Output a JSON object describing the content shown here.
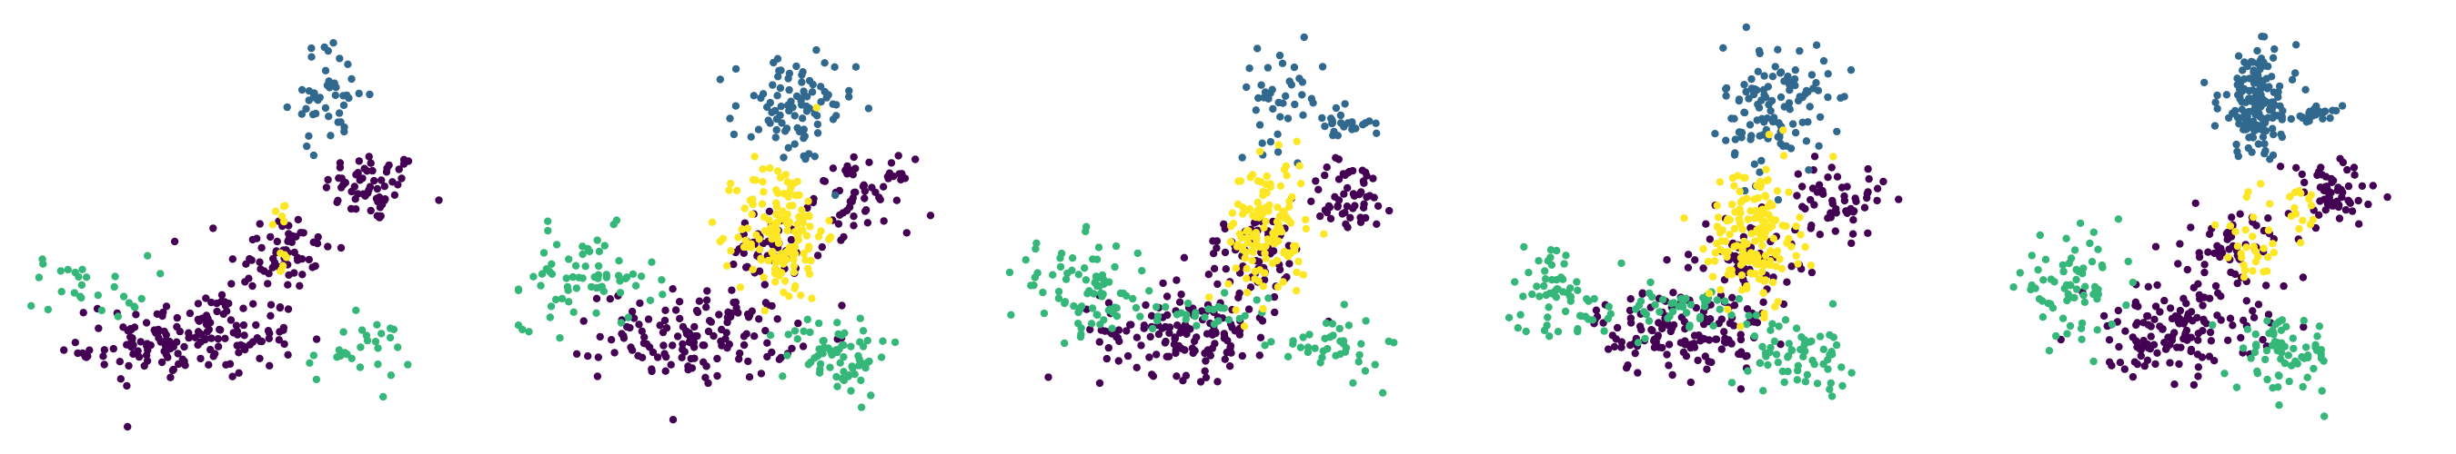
{
  "figure": {
    "description_hidden": ""
  },
  "chart_data": [
    {
      "type": "scatter",
      "title": "",
      "grid": false,
      "axes_visible": false,
      "xlim": [
        0,
        10
      ],
      "ylim": [
        0,
        10
      ],
      "colors": {
        "purple": "#440154",
        "blue": "#31688e",
        "green": "#35b779",
        "yellow": "#fde725"
      },
      "series": [
        {
          "color": "purple",
          "clusters": [
            {
              "cx": 7.9,
              "cy": 6.0,
              "sx": 0.55,
              "sy": 0.45,
              "n": 60
            },
            {
              "cx": 5.8,
              "cy": 4.4,
              "sx": 0.6,
              "sy": 0.5,
              "n": 60
            },
            {
              "cx": 4.0,
              "cy": 2.3,
              "sx": 1.1,
              "sy": 0.55,
              "n": 140
            },
            {
              "cx": 2.6,
              "cy": 1.9,
              "sx": 0.7,
              "sy": 0.45,
              "n": 30
            }
          ]
        },
        {
          "color": "blue",
          "clusters": [
            {
              "cx": 6.9,
              "cy": 8.3,
              "sx": 0.45,
              "sy": 0.65,
              "n": 45
            }
          ]
        },
        {
          "color": "green",
          "clusters": [
            {
              "cx": 1.4,
              "cy": 3.5,
              "sx": 0.7,
              "sy": 0.4,
              "n": 28
            },
            {
              "cx": 7.6,
              "cy": 1.9,
              "sx": 0.6,
              "sy": 0.4,
              "n": 28
            }
          ]
        },
        {
          "color": "yellow",
          "clusters": [
            {
              "cx": 5.8,
              "cy": 4.6,
              "sx": 0.15,
              "sy": 0.7,
              "n": 12
            }
          ]
        }
      ]
    },
    {
      "type": "scatter",
      "title": "",
      "grid": false,
      "axes_visible": false,
      "xlim": [
        0,
        10
      ],
      "ylim": [
        0,
        10
      ],
      "colors": {
        "purple": "#440154",
        "blue": "#31688e",
        "green": "#35b779",
        "yellow": "#fde725"
      },
      "series": [
        {
          "color": "purple",
          "clusters": [
            {
              "cx": 7.9,
              "cy": 5.8,
              "sx": 0.55,
              "sy": 0.45,
              "n": 60
            },
            {
              "cx": 5.8,
              "cy": 4.4,
              "sx": 0.6,
              "sy": 0.5,
              "n": 50
            },
            {
              "cx": 4.1,
              "cy": 2.3,
              "sx": 1.1,
              "sy": 0.55,
              "n": 140
            }
          ]
        },
        {
          "color": "blue",
          "clusters": [
            {
              "cx": 6.3,
              "cy": 7.9,
              "sx": 0.7,
              "sy": 0.7,
              "n": 90
            }
          ]
        },
        {
          "color": "green",
          "clusters": [
            {
              "cx": 1.5,
              "cy": 3.7,
              "sx": 0.8,
              "sy": 0.6,
              "n": 70
            },
            {
              "cx": 7.3,
              "cy": 1.8,
              "sx": 0.6,
              "sy": 0.5,
              "n": 70
            }
          ]
        },
        {
          "color": "yellow",
          "clusters": [
            {
              "cx": 6.0,
              "cy": 4.9,
              "sx": 0.5,
              "sy": 0.9,
              "n": 150
            }
          ]
        }
      ]
    },
    {
      "type": "scatter",
      "title": "",
      "grid": false,
      "axes_visible": false,
      "xlim": [
        0,
        10
      ],
      "ylim": [
        0,
        10
      ],
      "colors": {
        "purple": "#440154",
        "blue": "#31688e",
        "green": "#35b779",
        "yellow": "#fde725"
      },
      "series": [
        {
          "color": "purple",
          "clusters": [
            {
              "cx": 7.8,
              "cy": 5.8,
              "sx": 0.55,
              "sy": 0.45,
              "n": 55
            },
            {
              "cx": 5.6,
              "cy": 4.3,
              "sx": 0.6,
              "sy": 0.5,
              "n": 60
            },
            {
              "cx": 4.1,
              "cy": 2.4,
              "sx": 1.0,
              "sy": 0.55,
              "n": 140
            }
          ]
        },
        {
          "color": "blue",
          "clusters": [
            {
              "cx": 6.2,
              "cy": 8.2,
              "sx": 0.5,
              "sy": 0.6,
              "n": 40
            },
            {
              "cx": 7.6,
              "cy": 7.6,
              "sx": 0.35,
              "sy": 0.2,
              "n": 25
            }
          ]
        },
        {
          "color": "green",
          "clusters": [
            {
              "cx": 1.6,
              "cy": 3.5,
              "sx": 0.8,
              "sy": 0.6,
              "n": 70
            },
            {
              "cx": 4.0,
              "cy": 2.9,
              "sx": 1.2,
              "sy": 0.25,
              "n": 40
            },
            {
              "cx": 7.3,
              "cy": 2.0,
              "sx": 0.6,
              "sy": 0.4,
              "n": 40
            }
          ]
        },
        {
          "color": "yellow",
          "clusters": [
            {
              "cx": 5.9,
              "cy": 4.9,
              "sx": 0.45,
              "sy": 0.9,
              "n": 130
            }
          ]
        }
      ]
    },
    {
      "type": "scatter",
      "title": "",
      "grid": false,
      "axes_visible": false,
      "xlim": [
        0,
        10
      ],
      "ylim": [
        0,
        10
      ],
      "colors": {
        "purple": "#440154",
        "blue": "#31688e",
        "green": "#35b779",
        "yellow": "#fde725"
      },
      "series": [
        {
          "color": "purple",
          "clusters": [
            {
              "cx": 7.7,
              "cy": 5.7,
              "sx": 0.55,
              "sy": 0.45,
              "n": 55
            },
            {
              "cx": 5.6,
              "cy": 4.3,
              "sx": 0.6,
              "sy": 0.5,
              "n": 60
            },
            {
              "cx": 4.2,
              "cy": 2.4,
              "sx": 1.0,
              "sy": 0.55,
              "n": 140
            }
          ]
        },
        {
          "color": "blue",
          "clusters": [
            {
              "cx": 6.3,
              "cy": 8.0,
              "sx": 0.6,
              "sy": 0.8,
              "n": 120
            }
          ]
        },
        {
          "color": "green",
          "clusters": [
            {
              "cx": 1.3,
              "cy": 3.4,
              "sx": 0.6,
              "sy": 0.6,
              "n": 60
            },
            {
              "cx": 4.0,
              "cy": 2.9,
              "sx": 1.3,
              "sy": 0.3,
              "n": 50
            },
            {
              "cx": 6.9,
              "cy": 1.8,
              "sx": 0.6,
              "sy": 0.4,
              "n": 60
            }
          ]
        },
        {
          "color": "yellow",
          "clusters": [
            {
              "cx": 5.8,
              "cy": 4.8,
              "sx": 0.5,
              "sy": 0.9,
              "n": 170
            }
          ]
        }
      ]
    },
    {
      "type": "scatter",
      "title": "",
      "grid": false,
      "axes_visible": false,
      "xlim": [
        0,
        10
      ],
      "ylim": [
        0,
        10
      ],
      "colors": {
        "purple": "#440154",
        "blue": "#31688e",
        "green": "#35b779",
        "yellow": "#fde725"
      },
      "series": [
        {
          "color": "purple",
          "clusters": [
            {
              "cx": 7.8,
              "cy": 5.8,
              "sx": 0.55,
              "sy": 0.45,
              "n": 60
            },
            {
              "cx": 5.6,
              "cy": 4.4,
              "sx": 0.6,
              "sy": 0.5,
              "n": 60
            },
            {
              "cx": 4.1,
              "cy": 2.4,
              "sx": 1.0,
              "sy": 0.55,
              "n": 140
            }
          ]
        },
        {
          "color": "blue",
          "clusters": [
            {
              "cx": 6.1,
              "cy": 8.1,
              "sx": 0.45,
              "sy": 0.65,
              "n": 160
            },
            {
              "cx": 7.4,
              "cy": 7.8,
              "sx": 0.3,
              "sy": 0.12,
              "n": 20
            }
          ]
        },
        {
          "color": "green",
          "clusters": [
            {
              "cx": 1.8,
              "cy": 3.5,
              "sx": 0.6,
              "sy": 0.6,
              "n": 70
            },
            {
              "cx": 6.7,
              "cy": 1.8,
              "sx": 0.55,
              "sy": 0.45,
              "n": 70
            }
          ]
        },
        {
          "color": "yellow",
          "clusters": [
            {
              "cx": 5.9,
              "cy": 4.6,
              "sx": 0.35,
              "sy": 0.6,
              "n": 30
            },
            {
              "cx": 7.1,
              "cy": 5.2,
              "sx": 0.2,
              "sy": 0.35,
              "n": 15
            }
          ]
        }
      ]
    }
  ]
}
